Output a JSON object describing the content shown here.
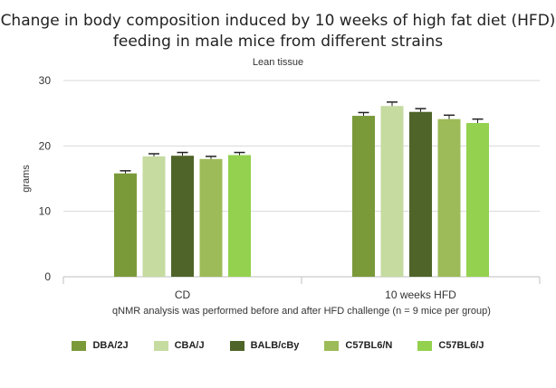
{
  "chart_data": {
    "type": "bar",
    "title": "Change in body composition induced by 10 weeks of high fat diet (HFD) feeding in male mice from different strains",
    "title_lines": [
      "Change in body composition induced by 10 weeks of high fat diet (HFD)",
      "feeding in male mice from different strains"
    ],
    "subtitle": "Lean tissue",
    "xlabel": "qNMR analysis was performed before and after HFD challenge (n = 9 mice per group)",
    "ylabel": "grams",
    "ylim": [
      0,
      30
    ],
    "yticks": [
      0,
      10,
      20,
      30
    ],
    "grid": true,
    "legend_position": "bottom",
    "categories": [
      "CD",
      "10 weeks HFD"
    ],
    "series": [
      {
        "name": "DBA/2J",
        "color": "#7a9a3a",
        "values": [
          15.8,
          24.6
        ],
        "errors": [
          0.4,
          0.5
        ]
      },
      {
        "name": "CBA/J",
        "color": "#c5dba0",
        "values": [
          18.4,
          26.1
        ],
        "errors": [
          0.4,
          0.6
        ]
      },
      {
        "name": "BALB/cBy",
        "color": "#4f6428",
        "values": [
          18.5,
          25.2
        ],
        "errors": [
          0.5,
          0.5
        ]
      },
      {
        "name": "C57BL6/N",
        "color": "#9dbb58",
        "values": [
          18.0,
          24.1
        ],
        "errors": [
          0.4,
          0.6
        ]
      },
      {
        "name": "C57BL6/J",
        "color": "#93d14f",
        "values": [
          18.6,
          23.5
        ],
        "errors": [
          0.4,
          0.6
        ]
      }
    ]
  }
}
